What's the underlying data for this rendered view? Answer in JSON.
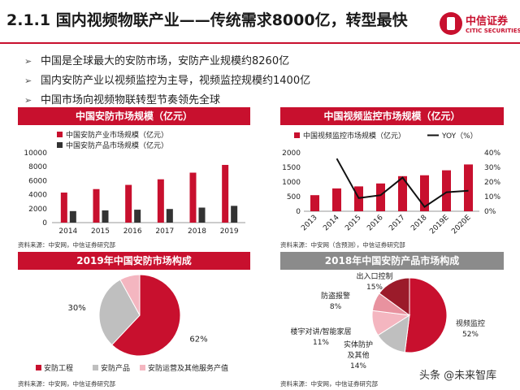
{
  "header": {
    "title": "2.1.1 国内视频物联产业——传统需求8000亿，转型最快",
    "logo_cn": "中信证券",
    "logo_en": "CITIC SECURITIES"
  },
  "bullets": [
    "中国是全球最大的安防市场，安防产业规模约8260亿",
    "国内安防产业以视频监控为主导，视频监控规模约1400亿",
    "中国市场向视频物联转型节奏领先全球"
  ],
  "colors": {
    "red": "#c8102e",
    "dark": "#333333",
    "grey": "#bfbfbf",
    "pink": "#f4b6c0",
    "header_red": "#c8102e",
    "header_grey": "#8b8b8b"
  },
  "panels": {
    "p1": {
      "title": "中国安防市场规模（亿元）",
      "source": "资料来源：中安网，中信证券研究部"
    },
    "p2": {
      "title": "中国视频监控市场规模（亿元）",
      "source": "资料来源：中安网（含预测），中信证券研究部"
    },
    "p3": {
      "title": "2019年中国安防市场构成",
      "source": "资料来源：中安网，中信证券研究部"
    },
    "p4": {
      "title": "2018年中国安防产品市场构成",
      "source": "资料来源：中安网，中信证券研究部"
    }
  },
  "watermark": "头条 @未来智库",
  "chart_data": [
    {
      "type": "bar",
      "categories": [
        "2014",
        "2015",
        "2016",
        "2017",
        "2018",
        "2019"
      ],
      "series": [
        {
          "name": "中国安防产业市场规模（亿元）",
          "values": [
            4300,
            4800,
            5400,
            6200,
            7150,
            8260
          ],
          "color": "#c8102e"
        },
        {
          "name": "中国安防产品市场规模（亿元）",
          "values": [
            1650,
            1750,
            1850,
            1950,
            2150,
            2400
          ],
          "color": "#333333"
        }
      ],
      "yticks": [
        "0",
        "2000",
        "4000",
        "6000",
        "8000",
        "10000"
      ],
      "ylim": [
        0,
        10000
      ],
      "legend": "top-left"
    },
    {
      "type": "bar",
      "categories": [
        "2013",
        "2014",
        "2015",
        "2016",
        "2017",
        "2018",
        "2019E",
        "2020E"
      ],
      "series": [
        {
          "name": "中国视频监控市场规模（亿元）",
          "values": [
            550,
            780,
            850,
            950,
            1200,
            1230,
            1400,
            1600
          ],
          "color": "#c8102e"
        },
        {
          "name": "YOY（%）",
          "type": "line",
          "axis": "right",
          "values": [
            null,
            36,
            9,
            11,
            23,
            3,
            13,
            14
          ],
          "color": "#111111"
        }
      ],
      "yticks": [
        "0",
        "500",
        "1000",
        "1500",
        "2000"
      ],
      "ylim": [
        0,
        2000
      ],
      "y2ticks": [
        "0%",
        "10%",
        "20%",
        "30%",
        "40%"
      ],
      "y2lim": [
        0,
        40
      ],
      "legend": "top"
    },
    {
      "type": "pie",
      "labels": [
        "安防工程",
        "安防产品",
        "安防运营及其他服务产值"
      ],
      "values": [
        62,
        30,
        8
      ],
      "value_labels": [
        "62%",
        "30%",
        "8%"
      ],
      "colors": [
        "#c8102e",
        "#bfbfbf",
        "#f4b6c0"
      ],
      "legend": "bottom"
    },
    {
      "type": "pie",
      "labels": [
        "视频监控",
        "实体防护及其他",
        "楼宇对讲/智能家居",
        "防盗报警",
        "出入口控制"
      ],
      "value_labels": [
        "52%",
        "14%",
        "11%",
        "8%",
        "15%"
      ],
      "values": [
        52,
        14,
        11,
        8,
        15
      ],
      "colors": [
        "#c8102e",
        "#bfbfbf",
        "#f4b6c0",
        "#e8929f",
        "#9b1b2a"
      ]
    }
  ]
}
